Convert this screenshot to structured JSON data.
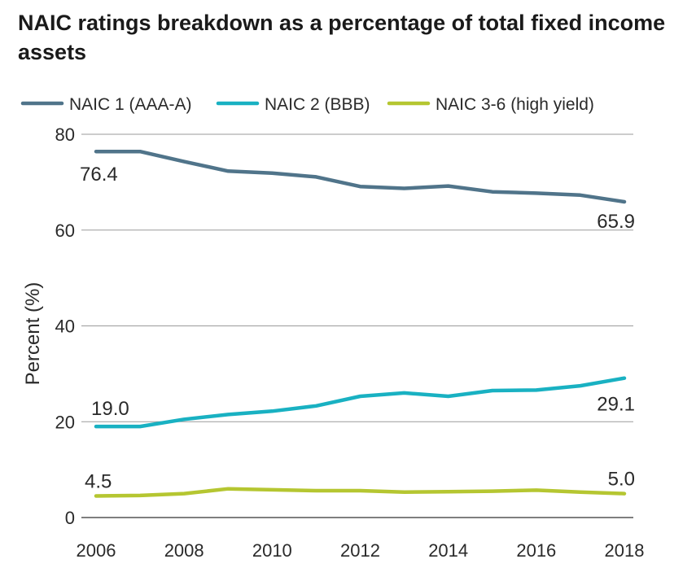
{
  "chart_data": {
    "type": "line",
    "title": "NAIC ratings breakdown as a percentage of total fixed income assets",
    "ylabel": "Percent (%)",
    "xlabel": "",
    "ylim": [
      0,
      80
    ],
    "yticks": [
      0,
      20,
      40,
      60,
      80
    ],
    "xticks": [
      2006,
      2008,
      2010,
      2012,
      2014,
      2016,
      2018
    ],
    "legend_position": "top",
    "grid": "horizontal",
    "x": [
      2006,
      2007,
      2008,
      2009,
      2010,
      2011,
      2012,
      2013,
      2014,
      2015,
      2016,
      2017,
      2018
    ],
    "series": [
      {
        "name": "NAIC 1 (AAA-A)",
        "color": "#50748a",
        "values": [
          76.4,
          76.4,
          74.3,
          72.3,
          71.9,
          71.1,
          69.1,
          68.7,
          69.2,
          68.0,
          67.7,
          67.3,
          65.9
        ],
        "start_label": "76.4",
        "end_label": "65.9"
      },
      {
        "name": "NAIC 2 (BBB)",
        "color": "#19b1c2",
        "values": [
          19.0,
          19.0,
          20.5,
          21.5,
          22.2,
          23.3,
          25.3,
          26.0,
          25.3,
          26.5,
          26.6,
          27.5,
          29.1
        ],
        "start_label": "19.0",
        "end_label": "29.1"
      },
      {
        "name": "NAIC 3-6 (high yield)",
        "color": "#b5c631",
        "values": [
          4.5,
          4.6,
          5.0,
          6.0,
          5.8,
          5.6,
          5.6,
          5.3,
          5.4,
          5.5,
          5.7,
          5.3,
          5.0
        ],
        "start_label": "4.5",
        "end_label": "5.0"
      }
    ]
  }
}
